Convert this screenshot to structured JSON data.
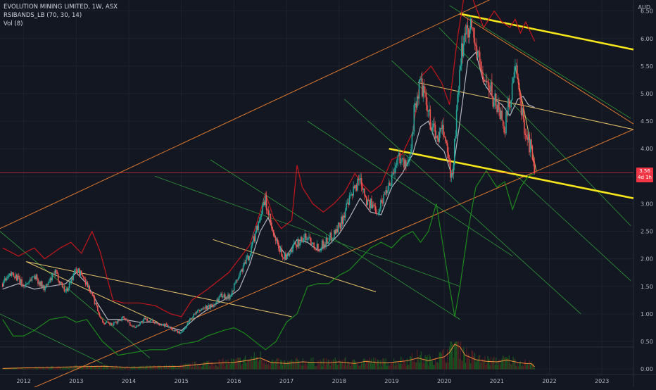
{
  "header": {
    "symbol_line": "EVOLUTION MINING LIMITED, 1W, ASX",
    "indicator_line": "RSIBANDS_LB (70, 30, 14)",
    "volume_line": "Vol (8)",
    "currency": "AUD"
  },
  "price_badge": {
    "value": "3.56",
    "countdown": "4d 1h"
  },
  "colors": {
    "background": "#131722",
    "grid": "#1e222d",
    "axis_text": "#b2b5be",
    "candle_up": "#26a69a",
    "candle_down": "#ef5350",
    "red_band": "#c4161c",
    "green_band": "#1c8a1c",
    "mid_line": "#b2b5be",
    "trend_orange": "#e07a2e",
    "channel_green": "#2e9b3a",
    "channel_yellow": "#e8c46a",
    "key_yellow": "#f5e51a",
    "current_price_line": "#f23645",
    "volume_line": "#f28c3a"
  },
  "chart_data": {
    "type": "candlestick",
    "title": "EVOLUTION MINING LIMITED, 1W, ASX",
    "xlabel": "",
    "ylabel": "",
    "currency": "AUD",
    "x_ticks": [
      "2012",
      "2013",
      "2014",
      "2015",
      "2016",
      "2017",
      "2018",
      "2019",
      "2020",
      "2021",
      "2022",
      "2023"
    ],
    "y_ticks": [
      "0.00",
      "0.50",
      "1.00",
      "1.50",
      "2.00",
      "2.50",
      "3.00",
      "3.50",
      "4.00",
      "4.50",
      "5.00",
      "5.50",
      "6.00",
      "6.50"
    ],
    "xlim": [
      2011.55,
      2023.6
    ],
    "ylim": [
      -0.1,
      6.7
    ],
    "grid": true,
    "last_price": 3.56,
    "close_anchors": [
      [
        2011.6,
        1.55
      ],
      [
        2011.8,
        1.75
      ],
      [
        2012.0,
        1.5
      ],
      [
        2012.2,
        1.7
      ],
      [
        2012.4,
        1.45
      ],
      [
        2012.6,
        1.75
      ],
      [
        2012.8,
        1.4
      ],
      [
        2013.0,
        1.82
      ],
      [
        2013.15,
        1.65
      ],
      [
        2013.3,
        1.35
      ],
      [
        2013.5,
        0.85
      ],
      [
        2013.7,
        0.8
      ],
      [
        2013.9,
        0.95
      ],
      [
        2014.1,
        0.75
      ],
      [
        2014.3,
        0.9
      ],
      [
        2014.5,
        0.85
      ],
      [
        2014.7,
        0.8
      ],
      [
        2014.85,
        0.7
      ],
      [
        2015.0,
        0.65
      ],
      [
        2015.2,
        0.95
      ],
      [
        2015.4,
        1.1
      ],
      [
        2015.6,
        1.15
      ],
      [
        2015.75,
        1.35
      ],
      [
        2015.9,
        1.3
      ],
      [
        2016.1,
        1.7
      ],
      [
        2016.3,
        2.1
      ],
      [
        2016.5,
        2.8
      ],
      [
        2016.6,
        3.05
      ],
      [
        2016.75,
        2.4
      ],
      [
        2016.9,
        2.1
      ],
      [
        2017.0,
        2.0
      ],
      [
        2017.2,
        2.3
      ],
      [
        2017.4,
        2.4
      ],
      [
        2017.6,
        2.2
      ],
      [
        2017.8,
        2.35
      ],
      [
        2018.0,
        2.6
      ],
      [
        2018.2,
        3.05
      ],
      [
        2018.4,
        3.5
      ],
      [
        2018.55,
        3.0
      ],
      [
        2018.75,
        2.9
      ],
      [
        2019.0,
        3.5
      ],
      [
        2019.15,
        3.9
      ],
      [
        2019.3,
        3.6
      ],
      [
        2019.45,
        4.8
      ],
      [
        2019.55,
        5.2
      ],
      [
        2019.7,
        4.6
      ],
      [
        2019.85,
        4.2
      ],
      [
        2020.0,
        4.3
      ],
      [
        2020.15,
        3.4
      ],
      [
        2020.25,
        4.8
      ],
      [
        2020.35,
        5.9
      ],
      [
        2020.45,
        6.3
      ],
      [
        2020.55,
        6.1
      ],
      [
        2020.65,
        5.6
      ],
      [
        2020.75,
        5.3
      ],
      [
        2020.85,
        5.1
      ],
      [
        2020.95,
        4.9
      ],
      [
        2021.05,
        4.7
      ],
      [
        2021.15,
        4.4
      ],
      [
        2021.25,
        4.9
      ],
      [
        2021.35,
        5.45
      ],
      [
        2021.45,
        4.8
      ],
      [
        2021.55,
        4.3
      ],
      [
        2021.65,
        4.0
      ],
      [
        2021.72,
        3.56
      ]
    ],
    "series": [
      {
        "name": "RSIBANDS_LB upper",
        "color": "#c4161c",
        "points": [
          [
            2011.6,
            2.2
          ],
          [
            2011.9,
            2.05
          ],
          [
            2012.2,
            2.2
          ],
          [
            2012.4,
            2.0
          ],
          [
            2012.7,
            2.2
          ],
          [
            2012.9,
            2.3
          ],
          [
            2013.1,
            2.1
          ],
          [
            2013.3,
            2.5
          ],
          [
            2013.45,
            2.15
          ],
          [
            2013.7,
            1.25
          ],
          [
            2013.9,
            1.2
          ],
          [
            2014.2,
            1.2
          ],
          [
            2014.5,
            1.15
          ],
          [
            2014.8,
            1.0
          ],
          [
            2015.0,
            0.95
          ],
          [
            2015.2,
            1.25
          ],
          [
            2015.5,
            1.45
          ],
          [
            2015.7,
            1.6
          ],
          [
            2015.9,
            1.75
          ],
          [
            2016.1,
            2.0
          ],
          [
            2016.3,
            2.25
          ],
          [
            2016.5,
            2.85
          ],
          [
            2016.6,
            3.2
          ],
          [
            2016.75,
            2.75
          ],
          [
            2016.9,
            2.55
          ],
          [
            2017.1,
            2.7
          ],
          [
            2017.2,
            3.7
          ],
          [
            2017.3,
            3.3
          ],
          [
            2017.5,
            3.0
          ],
          [
            2017.7,
            2.85
          ],
          [
            2017.9,
            3.0
          ],
          [
            2018.1,
            3.2
          ],
          [
            2018.3,
            3.55
          ],
          [
            2018.45,
            3.35
          ],
          [
            2018.6,
            3.2
          ],
          [
            2018.8,
            3.35
          ],
          [
            2019.0,
            3.8
          ],
          [
            2019.2,
            3.9
          ],
          [
            2019.4,
            4.3
          ],
          [
            2019.55,
            5.3
          ],
          [
            2019.75,
            5.5
          ],
          [
            2019.95,
            5.2
          ],
          [
            2020.1,
            4.8
          ],
          [
            2020.25,
            6.0
          ],
          [
            2020.4,
            6.9
          ],
          [
            2020.55,
            6.7
          ],
          [
            2020.75,
            6.2
          ],
          [
            2020.95,
            6.5
          ],
          [
            2021.1,
            6.3
          ],
          [
            2021.25,
            6.2
          ],
          [
            2021.35,
            6.35
          ],
          [
            2021.45,
            6.1
          ],
          [
            2021.55,
            6.3
          ],
          [
            2021.72,
            5.95
          ]
        ]
      },
      {
        "name": "RSIBANDS_LB lower",
        "color": "#1c8a1c",
        "points": [
          [
            2011.6,
            0.9
          ],
          [
            2011.8,
            0.6
          ],
          [
            2012.0,
            0.6
          ],
          [
            2012.2,
            0.7
          ],
          [
            2012.5,
            0.9
          ],
          [
            2012.8,
            0.95
          ],
          [
            2013.0,
            0.85
          ],
          [
            2013.2,
            0.9
          ],
          [
            2013.5,
            0.5
          ],
          [
            2013.8,
            0.25
          ],
          [
            2014.1,
            0.3
          ],
          [
            2014.4,
            0.35
          ],
          [
            2014.7,
            0.35
          ],
          [
            2015.0,
            0.45
          ],
          [
            2015.3,
            0.5
          ],
          [
            2015.5,
            0.6
          ],
          [
            2015.8,
            0.7
          ],
          [
            2016.0,
            0.75
          ],
          [
            2016.2,
            0.65
          ],
          [
            2016.4,
            0.5
          ],
          [
            2016.6,
            0.35
          ],
          [
            2016.8,
            0.5
          ],
          [
            2017.0,
            0.85
          ],
          [
            2017.2,
            1.0
          ],
          [
            2017.4,
            1.5
          ],
          [
            2017.6,
            1.55
          ],
          [
            2017.8,
            1.55
          ],
          [
            2018.0,
            1.7
          ],
          [
            2018.2,
            1.8
          ],
          [
            2018.4,
            2.0
          ],
          [
            2018.6,
            2.2
          ],
          [
            2018.8,
            2.3
          ],
          [
            2019.0,
            2.2
          ],
          [
            2019.2,
            2.4
          ],
          [
            2019.4,
            2.5
          ],
          [
            2019.55,
            2.3
          ],
          [
            2019.7,
            2.5
          ],
          [
            2019.85,
            3.0
          ],
          [
            2019.95,
            2.4
          ],
          [
            2020.1,
            1.5
          ],
          [
            2020.2,
            0.95
          ],
          [
            2020.3,
            1.5
          ],
          [
            2020.45,
            2.5
          ],
          [
            2020.6,
            3.3
          ],
          [
            2020.8,
            3.6
          ],
          [
            2021.0,
            3.3
          ],
          [
            2021.15,
            3.4
          ],
          [
            2021.3,
            2.9
          ],
          [
            2021.45,
            3.3
          ],
          [
            2021.6,
            3.5
          ],
          [
            2021.72,
            3.55
          ]
        ]
      },
      {
        "name": "RSIBANDS_LB mid",
        "color": "#b2b5be",
        "points": [
          [
            2011.6,
            1.45
          ],
          [
            2011.9,
            1.55
          ],
          [
            2012.2,
            1.45
          ],
          [
            2012.5,
            1.5
          ],
          [
            2012.8,
            1.55
          ],
          [
            2013.0,
            1.75
          ],
          [
            2013.2,
            1.55
          ],
          [
            2013.4,
            1.2
          ],
          [
            2013.6,
            0.9
          ],
          [
            2013.9,
            0.9
          ],
          [
            2014.2,
            0.85
          ],
          [
            2014.5,
            0.85
          ],
          [
            2014.8,
            0.75
          ],
          [
            2015.0,
            0.7
          ],
          [
            2015.3,
            0.95
          ],
          [
            2015.6,
            1.15
          ],
          [
            2015.9,
            1.3
          ],
          [
            2016.1,
            1.45
          ],
          [
            2016.3,
            1.9
          ],
          [
            2016.5,
            2.5
          ],
          [
            2016.65,
            2.75
          ],
          [
            2016.85,
            2.25
          ],
          [
            2017.0,
            2.05
          ],
          [
            2017.2,
            2.35
          ],
          [
            2017.4,
            2.3
          ],
          [
            2017.6,
            2.15
          ],
          [
            2017.8,
            2.25
          ],
          [
            2018.0,
            2.45
          ],
          [
            2018.2,
            2.75
          ],
          [
            2018.4,
            3.1
          ],
          [
            2018.6,
            2.85
          ],
          [
            2018.8,
            2.8
          ],
          [
            2019.0,
            3.3
          ],
          [
            2019.2,
            3.55
          ],
          [
            2019.4,
            3.9
          ],
          [
            2019.55,
            4.4
          ],
          [
            2019.7,
            4.5
          ],
          [
            2019.85,
            4.1
          ],
          [
            2020.0,
            3.95
          ],
          [
            2020.15,
            3.5
          ],
          [
            2020.3,
            4.5
          ],
          [
            2020.45,
            5.6
          ],
          [
            2020.6,
            5.75
          ],
          [
            2020.75,
            5.2
          ],
          [
            2020.95,
            4.9
          ],
          [
            2021.1,
            4.8
          ],
          [
            2021.25,
            4.6
          ],
          [
            2021.4,
            4.9
          ],
          [
            2021.5,
            4.95
          ],
          [
            2021.6,
            4.8
          ],
          [
            2021.72,
            4.75
          ]
        ]
      }
    ],
    "drawings": {
      "orange_lines": [
        [
          [
            2011.55,
            -0.6
          ],
          [
            2023.6,
            4.35
          ]
        ],
        [
          [
            2011.55,
            2.55
          ],
          [
            2020.3,
            6.45
          ]
        ],
        [
          [
            2020.3,
            6.45
          ],
          [
            2021.3,
            6.9
          ]
        ],
        [
          [
            2020.3,
            6.45
          ],
          [
            2023.6,
            4.45
          ]
        ]
      ],
      "yellow_thin_lines": [
        [
          [
            2012.05,
            1.95
          ],
          [
            2014.55,
            0.85
          ]
        ],
        [
          [
            2012.05,
            1.95
          ],
          [
            2017.1,
            0.95
          ]
        ],
        [
          [
            2015.6,
            2.35
          ],
          [
            2018.7,
            1.4
          ]
        ],
        [
          [
            2019.5,
            5.2
          ],
          [
            2023.6,
            4.35
          ]
        ],
        [
          [
            2021.35,
            5.5
          ],
          [
            2021.75,
            3.6
          ]
        ]
      ],
      "green_channel": [
        [
          [
            2011.55,
            2.5
          ],
          [
            2014.4,
            0.2
          ]
        ],
        [
          [
            2011.55,
            1.0
          ],
          [
            2013.5,
            0.1
          ]
        ],
        [
          [
            2014.5,
            3.5
          ],
          [
            2020.3,
            1.5
          ]
        ],
        [
          [
            2015.55,
            3.8
          ],
          [
            2020.3,
            0.9
          ]
        ],
        [
          [
            2017.4,
            4.5
          ],
          [
            2021.3,
            2.05
          ]
        ],
        [
          [
            2018.1,
            4.9
          ],
          [
            2022.6,
            1.0
          ]
        ],
        [
          [
            2019.0,
            5.6
          ],
          [
            2023.55,
            1.6
          ]
        ],
        [
          [
            2019.9,
            6.2
          ],
          [
            2023.55,
            2.6
          ]
        ],
        [
          [
            2020.1,
            6.6
          ],
          [
            2023.55,
            4.55
          ]
        ]
      ],
      "key_yellow_lines": [
        [
          [
            2020.3,
            6.45
          ],
          [
            2023.6,
            5.8
          ]
        ],
        [
          [
            2018.95,
            4.0
          ],
          [
            2023.6,
            3.1
          ]
        ]
      ]
    },
    "volume": {
      "name": "Vol (8)",
      "points": [
        [
          2011.6,
          0.01
        ],
        [
          2012.0,
          0.02
        ],
        [
          2012.5,
          0.03
        ],
        [
          2013.0,
          0.04
        ],
        [
          2013.5,
          0.05
        ],
        [
          2014.0,
          0.03
        ],
        [
          2014.5,
          0.04
        ],
        [
          2015.0,
          0.05
        ],
        [
          2015.5,
          0.1
        ],
        [
          2016.0,
          0.12
        ],
        [
          2016.3,
          0.16
        ],
        [
          2016.5,
          0.2
        ],
        [
          2016.7,
          0.12
        ],
        [
          2017.0,
          0.1
        ],
        [
          2017.3,
          0.13
        ],
        [
          2017.5,
          0.12
        ],
        [
          2017.8,
          0.11
        ],
        [
          2018.0,
          0.13
        ],
        [
          2018.3,
          0.1
        ],
        [
          2018.5,
          0.14
        ],
        [
          2018.8,
          0.11
        ],
        [
          2019.0,
          0.12
        ],
        [
          2019.3,
          0.15
        ],
        [
          2019.5,
          0.2
        ],
        [
          2019.7,
          0.15
        ],
        [
          2019.9,
          0.2
        ],
        [
          2020.0,
          0.22
        ],
        [
          2020.1,
          0.3
        ],
        [
          2020.2,
          0.45
        ],
        [
          2020.3,
          0.4
        ],
        [
          2020.4,
          0.25
        ],
        [
          2020.6,
          0.17
        ],
        [
          2020.8,
          0.14
        ],
        [
          2021.0,
          0.13
        ],
        [
          2021.2,
          0.16
        ],
        [
          2021.4,
          0.12
        ],
        [
          2021.55,
          0.1
        ],
        [
          2021.65,
          0.1
        ],
        [
          2021.72,
          0.04
        ]
      ]
    }
  }
}
